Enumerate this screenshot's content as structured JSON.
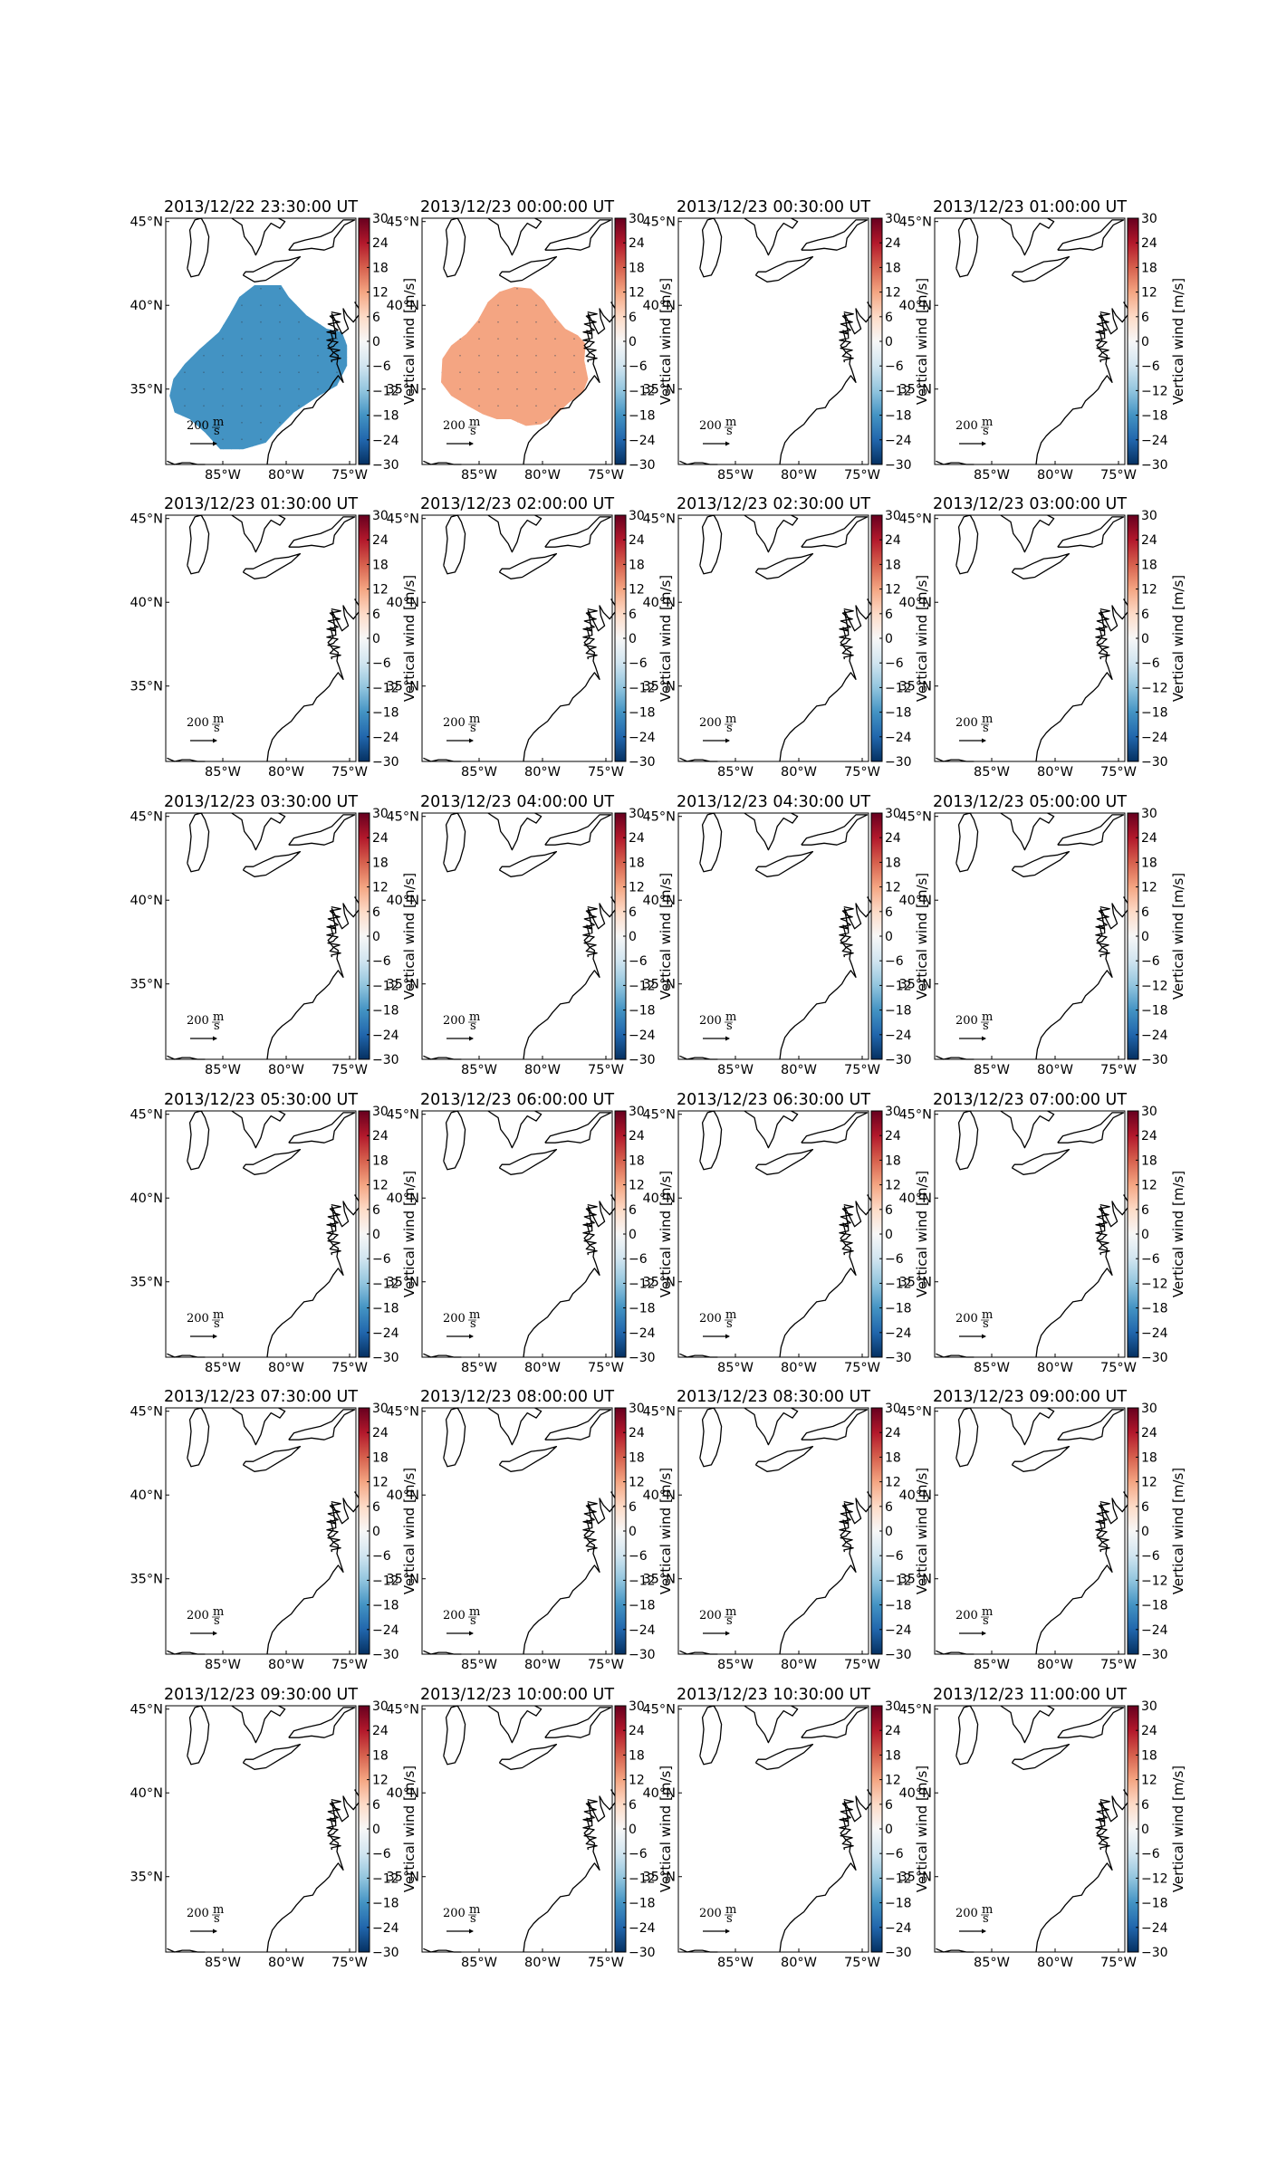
{
  "figure": {
    "cbar_label": "Vertical wind [m/s]",
    "vector_key_label": "200 m/s",
    "colormap": [
      "#053061",
      "#2166ac",
      "#4393c3",
      "#92c5de",
      "#d1e5f0",
      "#f7f7f7",
      "#fddbc7",
      "#f4a582",
      "#d6604d",
      "#b2182b",
      "#67001f"
    ]
  },
  "chart_data": {
    "type": "heatmap",
    "layout": {
      "rows": 6,
      "cols": 4
    },
    "lon_range": [
      -89.5,
      -74.5
    ],
    "lat_range": [
      30.5,
      45.2
    ],
    "x_ticks": [
      {
        "value": -85,
        "label": "85°W"
      },
      {
        "value": -80,
        "label": "80°W"
      },
      {
        "value": -75,
        "label": "75°W"
      }
    ],
    "y_ticks": [
      {
        "value": 35,
        "label": "35°N"
      },
      {
        "value": 40,
        "label": "40°N"
      },
      {
        "value": 45,
        "label": "45°N"
      }
    ],
    "colorbar": {
      "vmin": -30,
      "vmax": 30,
      "ticks": [
        -30,
        -24,
        -18,
        -12,
        -6,
        0,
        6,
        12,
        18,
        24,
        30
      ],
      "tick_labels": [
        "−30",
        "−24",
        "−18",
        "−12",
        "−6",
        "0",
        "6",
        "12",
        "18",
        "24",
        "30"
      ]
    },
    "panels": [
      {
        "title": "2013/12/22 23:30:00 UT",
        "field": {
          "value": -18,
          "color": "#4393c3",
          "region": "blob-1"
        }
      },
      {
        "title": "2013/12/23 00:00:00 UT",
        "field": {
          "value": 12,
          "color": "#f4a582",
          "region": "blob-2"
        }
      },
      {
        "title": "2013/12/23 00:30:00 UT",
        "field": null
      },
      {
        "title": "2013/12/23 01:00:00 UT",
        "field": null
      },
      {
        "title": "2013/12/23 01:30:00 UT",
        "field": null
      },
      {
        "title": "2013/12/23 02:00:00 UT",
        "field": null
      },
      {
        "title": "2013/12/23 02:30:00 UT",
        "field": null
      },
      {
        "title": "2013/12/23 03:00:00 UT",
        "field": null
      },
      {
        "title": "2013/12/23 03:30:00 UT",
        "field": null
      },
      {
        "title": "2013/12/23 04:00:00 UT",
        "field": null
      },
      {
        "title": "2013/12/23 04:30:00 UT",
        "field": null
      },
      {
        "title": "2013/12/23 05:00:00 UT",
        "field": null
      },
      {
        "title": "2013/12/23 05:30:00 UT",
        "field": null
      },
      {
        "title": "2013/12/23 06:00:00 UT",
        "field": null
      },
      {
        "title": "2013/12/23 06:30:00 UT",
        "field": null
      },
      {
        "title": "2013/12/23 07:00:00 UT",
        "field": null
      },
      {
        "title": "2013/12/23 07:30:00 UT",
        "field": null
      },
      {
        "title": "2013/12/23 08:00:00 UT",
        "field": null
      },
      {
        "title": "2013/12/23 08:30:00 UT",
        "field": null
      },
      {
        "title": "2013/12/23 09:00:00 UT",
        "field": null
      },
      {
        "title": "2013/12/23 09:30:00 UT",
        "field": null
      },
      {
        "title": "2013/12/23 10:00:00 UT",
        "field": null
      },
      {
        "title": "2013/12/23 10:30:00 UT",
        "field": null
      },
      {
        "title": "2013/12/23 11:00:00 UT",
        "field": null
      }
    ]
  }
}
